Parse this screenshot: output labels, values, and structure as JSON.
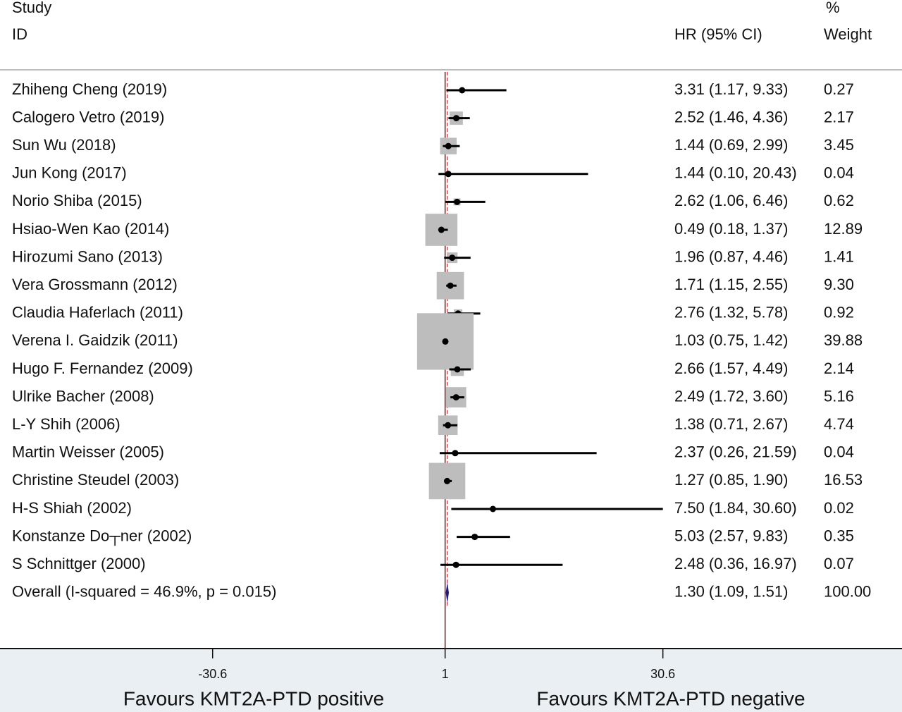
{
  "chart_data": {
    "type": "forest",
    "header": {
      "study": "Study",
      "id": "ID",
      "effect": "HR (95% CI)",
      "pct": "%",
      "weight": "Weight"
    },
    "studies": [
      "Zhiheng Cheng (2019)",
      "Calogero Vetro (2019)",
      "Sun Wu (2018)",
      "Jun Kong (2017)",
      "Norio Shiba (2015)",
      "Hsiao-Wen Kao (2014)",
      "Hirozumi Sano (2013)",
      "Vera Grossmann (2012)",
      "Claudia Haferlach (2011)",
      "Verena I. Gaidzik (2011)",
      "Hugo F. Fernandez (2009)",
      "Ulrike Bacher (2008)",
      "L-Y Shih (2006)",
      "Martin Weisser (2005)",
      "Christine Steudel (2003)",
      "H-S Shiah (2002)",
      "Konstanze Do┬ner (2002)",
      "S Schnittger (2000)"
    ],
    "hr": [
      3.31,
      2.52,
      1.44,
      1.44,
      2.62,
      0.49,
      1.96,
      1.71,
      2.76,
      1.03,
      2.66,
      2.49,
      1.38,
      2.37,
      1.27,
      7.5,
      5.03,
      2.48
    ],
    "ci_low": [
      1.17,
      1.46,
      0.69,
      0.1,
      1.06,
      0.18,
      0.87,
      1.15,
      1.32,
      0.75,
      1.57,
      1.72,
      0.71,
      0.26,
      0.85,
      1.84,
      2.57,
      0.36
    ],
    "ci_high": [
      9.33,
      4.36,
      2.99,
      20.43,
      6.46,
      1.37,
      4.46,
      2.55,
      5.78,
      1.42,
      4.49,
      3.6,
      2.67,
      21.59,
      1.9,
      30.6,
      9.83,
      16.97
    ],
    "value_labels": [
      "3.31 (1.17, 9.33)",
      "2.52 (1.46, 4.36)",
      "1.44 (0.69, 2.99)",
      "1.44 (0.10, 20.43)",
      "2.62 (1.06, 6.46)",
      "0.49 (0.18, 1.37)",
      "1.96 (0.87, 4.46)",
      "1.71 (1.15, 2.55)",
      "2.76 (1.32, 5.78)",
      "1.03 (0.75, 1.42)",
      "2.66 (1.57, 4.49)",
      "2.49 (1.72, 3.60)",
      "1.38 (0.71, 2.67)",
      "2.37 (0.26, 21.59)",
      "1.27 (0.85, 1.90)",
      "7.50 (1.84, 30.60)",
      "5.03 (2.57, 9.83)",
      "2.48 (0.36, 16.97)"
    ],
    "weights": [
      0.27,
      2.17,
      3.45,
      0.04,
      0.62,
      12.89,
      1.41,
      9.3,
      0.92,
      39.88,
      2.14,
      5.16,
      4.74,
      0.04,
      16.53,
      0.02,
      0.35,
      0.07
    ],
    "weight_labels": [
      "0.27",
      "2.17",
      "3.45",
      "0.04",
      "0.62",
      "12.89",
      "1.41",
      "9.30",
      "0.92",
      "39.88",
      "2.14",
      "5.16",
      "4.74",
      "0.04",
      "16.53",
      "0.02",
      "0.35",
      "0.07"
    ],
    "overall": {
      "label": "Overall  (I-squared = 46.9%, p = 0.015)",
      "hr": 1.3,
      "ci_low": 1.09,
      "ci_high": 1.51,
      "value_label": "1.30 (1.09, 1.51)",
      "weight": 100.0,
      "weight_label": "100.00"
    },
    "null_value": 1,
    "xlim": [
      -59.5,
      63.1
    ],
    "xticks": [
      -30.6,
      1,
      30.6
    ],
    "xlabel_left": "Favours KMT2A-PTD positive",
    "xlabel_right": "Favours KMT2A-PTD negative",
    "box_color": "#bdbdbd",
    "diamond_color": "#1a1a8c",
    "null_line_color": "#6b1a1a",
    "overall_line_color": "#cc2222"
  }
}
